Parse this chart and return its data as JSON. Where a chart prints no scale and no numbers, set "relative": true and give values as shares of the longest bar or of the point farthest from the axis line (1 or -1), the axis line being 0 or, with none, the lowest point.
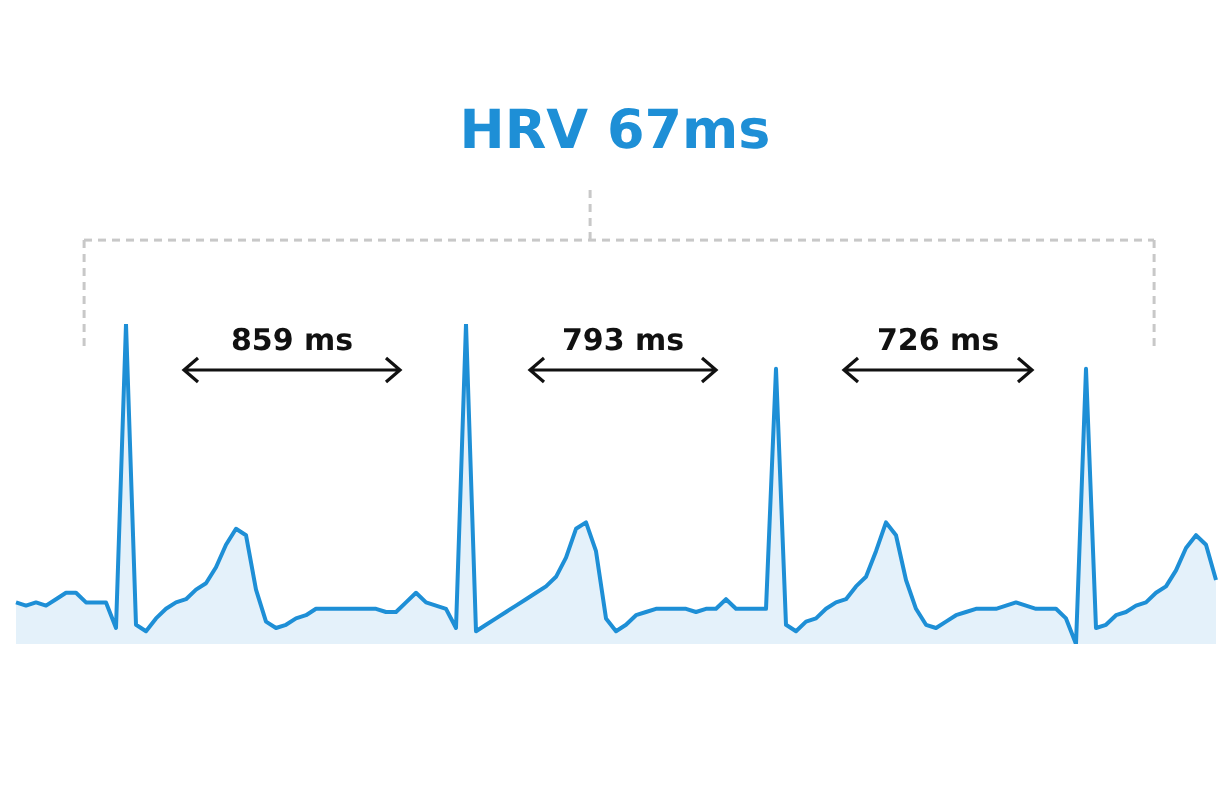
{
  "chart_data": {
    "type": "area",
    "title": "HRV 67ms",
    "relative": true,
    "categories": [
      null,
      null,
      null,
      null,
      null,
      null,
      null,
      null,
      null,
      null,
      null,
      null,
      null,
      null,
      null,
      null,
      null,
      null,
      null,
      null,
      null,
      null,
      null,
      null,
      null,
      null,
      null,
      null,
      null,
      null,
      null,
      null,
      null,
      null,
      null,
      null,
      null,
      null,
      null,
      null,
      null,
      null,
      null,
      null,
      null,
      null,
      null,
      null,
      null,
      null,
      null,
      null,
      null,
      null,
      null,
      null,
      null,
      null,
      null,
      null,
      null,
      null,
      null,
      null,
      null,
      null,
      null,
      null,
      null,
      null,
      null,
      null,
      null,
      null,
      null,
      null,
      null,
      null,
      null,
      null,
      null,
      null,
      null,
      null,
      null,
      null,
      null,
      null,
      null,
      null,
      null,
      null,
      null,
      null,
      null,
      null,
      null,
      null,
      null,
      null,
      null,
      null,
      null,
      null,
      null,
      null,
      null,
      null,
      null,
      null,
      null,
      null,
      null,
      null,
      null,
      null,
      null,
      null,
      null,
      null,
      null
    ],
    "series": [
      {
        "color": "#1e8fd6",
        "values": [
          0.13,
          0.12,
          0.13,
          0.12,
          0.14,
          0.16,
          0.16,
          0.13,
          0.13,
          0.13,
          0.05,
          1,
          0.06,
          0.04,
          0.08,
          0.11,
          0.13,
          0.14,
          0.17,
          0.19,
          0.24,
          0.31,
          0.36,
          0.34,
          0.17,
          0.07,
          0.05,
          0.06,
          0.08,
          0.09,
          0.11,
          0.11,
          0.11,
          0.11,
          0.11,
          0.11,
          0.11,
          0.1,
          0.1,
          0.13,
          0.16,
          0.13,
          0.12,
          0.11,
          0.05,
          1,
          0.04,
          0.06,
          0.08,
          0.1,
          0.12,
          0.14,
          0.16,
          0.18,
          0.21,
          0.27,
          0.36,
          0.38,
          0.29,
          0.08,
          0.04,
          0.06,
          0.09,
          0.1,
          0.11,
          0.11,
          0.11,
          0.11,
          0.1,
          0.11,
          0.11,
          0.14,
          0.11,
          0.11,
          0.11,
          0.11,
          0.86,
          0.06,
          0.04,
          0.07,
          0.08,
          0.11,
          0.13,
          0.14,
          0.18,
          0.21,
          0.29,
          0.38,
          0.34,
          0.2,
          0.11,
          0.06,
          0.05,
          0.07,
          0.09,
          0.1,
          0.11,
          0.11,
          0.11,
          0.12,
          0.13,
          0.12,
          0.11,
          0.11,
          0.11,
          0.08,
          0,
          0.86,
          0.05,
          0.06,
          0.09,
          0.1,
          0.12,
          0.13,
          0.16,
          0.18,
          0.23,
          0.3,
          0.34,
          0.31,
          0.2
        ]
      }
    ],
    "annotations": [
      "859 ms",
      "793 ms",
      "726 ms"
    ]
  }
}
